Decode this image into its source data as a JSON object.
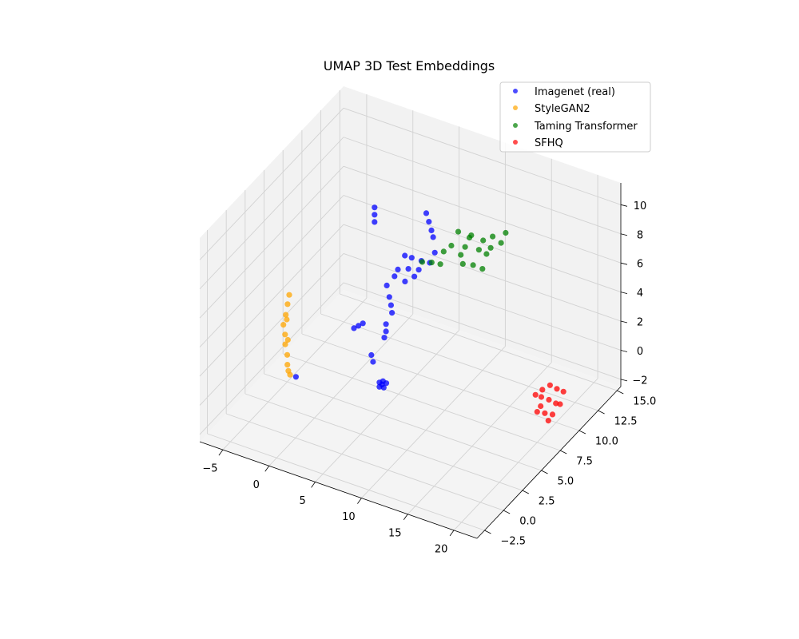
{
  "chart_data": {
    "type": "scatter",
    "projection": "3d",
    "title": "UMAP 3D Test Embeddings",
    "xlabel": "",
    "ylabel": "",
    "zlabel": "",
    "xlim": [
      -7.5,
      22.5
    ],
    "ylim": [
      -3.5,
      15.5
    ],
    "zlim": [
      -2.5,
      11.5
    ],
    "x_ticks": [
      -5,
      0,
      5,
      10,
      15,
      20
    ],
    "x_tick_labels": [
      "−5",
      "0",
      "5",
      "10",
      "15",
      "20"
    ],
    "y_ticks": [
      -2.5,
      0.0,
      2.5,
      5.0,
      7.5,
      10.0,
      12.5,
      15.0
    ],
    "y_tick_labels": [
      "−2.5",
      "0.0",
      "2.5",
      "5.0",
      "7.5",
      "10.0",
      "12.5",
      "15.0"
    ],
    "z_ticks": [
      -2,
      0,
      2,
      4,
      6,
      8,
      10
    ],
    "z_tick_labels": [
      "−2",
      "0",
      "2",
      "4",
      "6",
      "8",
      "10"
    ],
    "grid": true,
    "legend_position": "top-right",
    "series": [
      {
        "name": "Imagenet (real)",
        "color": "#0000ff",
        "points": [
          [
            3.8,
            5.8,
            11.0
          ],
          [
            3.8,
            5.8,
            10.5
          ],
          [
            3.8,
            5.8,
            10.0
          ],
          [
            8.0,
            7.5,
            10.6
          ],
          [
            8.2,
            7.6,
            10.0
          ],
          [
            8.4,
            7.7,
            9.4
          ],
          [
            8.5,
            7.8,
            8.9
          ],
          [
            6.5,
            6.5,
            7.9
          ],
          [
            7.0,
            6.8,
            7.7
          ],
          [
            7.8,
            7.1,
            7.5
          ],
          [
            6.8,
            6.6,
            7.0
          ],
          [
            7.2,
            6.9,
            6.4
          ],
          [
            7.6,
            7.0,
            6.9
          ],
          [
            6.0,
            6.2,
            7.0
          ],
          [
            5.8,
            6.0,
            6.6
          ],
          [
            6.6,
            6.4,
            6.2
          ],
          [
            8.6,
            7.9,
            7.8
          ],
          [
            8.3,
            7.6,
            7.2
          ],
          [
            5.2,
            5.7,
            6.0
          ],
          [
            5.4,
            5.8,
            5.2
          ],
          [
            5.5,
            5.9,
            4.6
          ],
          [
            5.6,
            5.9,
            4.1
          ],
          [
            5.2,
            5.6,
            3.4
          ],
          [
            5.2,
            5.6,
            2.9
          ],
          [
            5.1,
            5.5,
            2.5
          ],
          [
            4.6,
            4.4,
            1.8
          ],
          [
            4.7,
            4.5,
            1.3
          ],
          [
            2.8,
            4.3,
            3.3
          ],
          [
            3.2,
            4.4,
            3.5
          ],
          [
            3.6,
            4.5,
            3.7
          ],
          [
            5.8,
            4.0,
            0.4
          ],
          [
            6.1,
            4.1,
            0.5
          ],
          [
            6.3,
            4.3,
            0.3
          ],
          [
            6.1,
            4.2,
            0.0
          ],
          [
            5.8,
            4.0,
            0.1
          ],
          [
            6.0,
            4.1,
            0.25
          ],
          [
            2.5,
            -3.0,
            3.9
          ]
        ]
      },
      {
        "name": "StyleGAN2",
        "color": "#ffa500",
        "points": [
          [
            -3.8,
            3.8,
            4.4
          ],
          [
            -3.9,
            3.7,
            3.8
          ],
          [
            -4.0,
            3.6,
            3.1
          ],
          [
            -4.1,
            3.4,
            2.5
          ],
          [
            -4.0,
            3.5,
            1.8
          ],
          [
            -3.9,
            3.4,
            1.2
          ],
          [
            -3.6,
            3.3,
            0.6
          ],
          [
            -3.5,
            3.2,
            0.0
          ],
          [
            -3.4,
            3.2,
            -0.4
          ],
          [
            -3.3,
            3.3,
            -0.7
          ],
          [
            -3.7,
            3.5,
            1.5
          ],
          [
            -3.9,
            3.6,
            2.8
          ]
        ]
      },
      {
        "name": "Taming Transformer",
        "color": "#008000",
        "points": [
          [
            9.0,
            10.5,
            7.9
          ],
          [
            10.0,
            11.0,
            7.6
          ],
          [
            10.8,
            11.6,
            7.1
          ],
          [
            11.5,
            12.0,
            7.3
          ],
          [
            12.5,
            12.5,
            7.5
          ],
          [
            8.5,
            10.2,
            7.0
          ],
          [
            9.5,
            10.8,
            6.8
          ],
          [
            10.5,
            11.4,
            6.5
          ],
          [
            11.0,
            11.8,
            6.1
          ],
          [
            9.2,
            10.6,
            6.3
          ],
          [
            8.0,
            9.8,
            6.7
          ],
          [
            10.2,
            11.0,
            5.6
          ],
          [
            10.8,
            11.5,
            5.2
          ],
          [
            9.5,
            10.5,
            5.8
          ],
          [
            6.5,
            8.8,
            6.2
          ],
          [
            7.2,
            9.2,
            6.1
          ],
          [
            7.8,
            9.6,
            5.9
          ],
          [
            11.2,
            12.1,
            6.4
          ],
          [
            12.0,
            12.5,
            6.7
          ],
          [
            9.8,
            11.0,
            7.4
          ]
        ]
      },
      {
        "name": "SFHQ",
        "color": "#ff0000",
        "points": [
          [
            19.0,
            8.5,
            0.0
          ],
          [
            19.5,
            8.8,
            0.3
          ],
          [
            20.0,
            9.2,
            0.5
          ],
          [
            20.5,
            9.5,
            0.2
          ],
          [
            19.3,
            8.9,
            -0.3
          ],
          [
            19.8,
            9.3,
            -0.6
          ],
          [
            20.3,
            9.6,
            -0.9
          ],
          [
            19.1,
            8.6,
            -1.2
          ],
          [
            19.6,
            9.0,
            -1.4
          ],
          [
            20.1,
            9.4,
            -1.6
          ],
          [
            20.6,
            9.8,
            -1.0
          ],
          [
            19.4,
            8.7,
            -0.8
          ],
          [
            20.8,
            10.0,
            -0.2
          ],
          [
            19.9,
            9.1,
            -1.9
          ]
        ]
      }
    ]
  }
}
